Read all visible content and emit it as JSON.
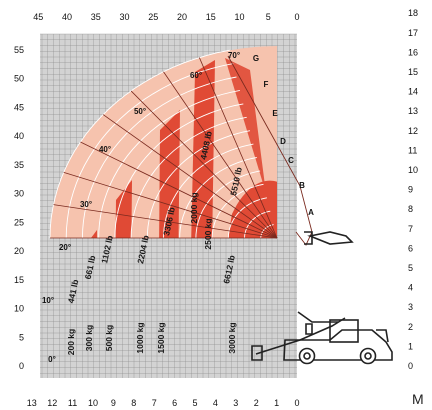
{
  "colors": {
    "panel": "#d3d3d3",
    "grid": "#8e8e8e",
    "band_dark": "#e04a35",
    "band_light": "#f6c3ae",
    "arc_line": "#ffffff",
    "radial_line": "#7a2a1f",
    "machine": "#222222"
  },
  "chart_data": {
    "type": "load-chart",
    "grid": true,
    "axes": {
      "top_ft": {
        "ticks": [
          "45",
          "40",
          "35",
          "30",
          "25",
          "20",
          "15",
          "10",
          "5",
          "0"
        ],
        "range": [
          45,
          0
        ]
      },
      "left_ft": {
        "ticks": [
          "0",
          "5",
          "10",
          "15",
          "20",
          "25",
          "30",
          "35",
          "40",
          "45",
          "50",
          "55"
        ],
        "range": [
          0,
          55
        ]
      },
      "bottom_m": {
        "ticks": [
          "13",
          "12",
          "11",
          "10",
          "9",
          "8",
          "7",
          "6",
          "5",
          "4",
          "3",
          "2",
          "1",
          "0"
        ],
        "range": [
          13,
          0
        ]
      },
      "right_m": {
        "ticks": [
          "0",
          "1",
          "2",
          "3",
          "4",
          "5",
          "6",
          "7",
          "8",
          "9",
          "10",
          "11",
          "12",
          "13",
          "14",
          "15",
          "16",
          "17",
          "18"
        ],
        "range": [
          0,
          18
        ]
      },
      "unit_label": "M"
    },
    "boom_angles": [
      {
        "label": "0°",
        "deg": 0
      },
      {
        "label": "10°",
        "deg": 10
      },
      {
        "label": "20°",
        "deg": 20
      },
      {
        "label": "30°",
        "deg": 30
      },
      {
        "label": "40°",
        "deg": 40
      },
      {
        "label": "50°",
        "deg": 50
      },
      {
        "label": "60°",
        "deg": 60
      },
      {
        "label": "70°",
        "deg": 70
      }
    ],
    "extension_marks": [
      "A",
      "B",
      "C",
      "D",
      "E",
      "F",
      "G"
    ],
    "load_zones": [
      {
        "kg": "3000 kg",
        "lb": "6612 lb",
        "reach_ft": [
          0,
          15
        ]
      },
      {
        "kg": "2500 kg",
        "lb": "5510 lb",
        "reach_ft": [
          0,
          15
        ]
      },
      {
        "kg": "2000 kg",
        "lb": "4408 lb",
        "reach_ft": [
          15,
          20
        ]
      },
      {
        "kg": "1500 kg",
        "lb": "3306 lb",
        "reach_ft": [
          20,
          25
        ]
      },
      {
        "kg": "1000 kg",
        "lb": "2204 lb",
        "reach_ft": [
          25,
          30
        ]
      },
      {
        "kg": "500 kg",
        "lb": "1102 lb",
        "reach_ft": [
          30,
          35
        ]
      },
      {
        "kg": "300 kg",
        "lb": "661 lb",
        "reach_ft": [
          35,
          40
        ]
      },
      {
        "kg": "200 kg",
        "lb": "441 lb",
        "reach_ft": [
          40,
          44
        ]
      }
    ]
  }
}
